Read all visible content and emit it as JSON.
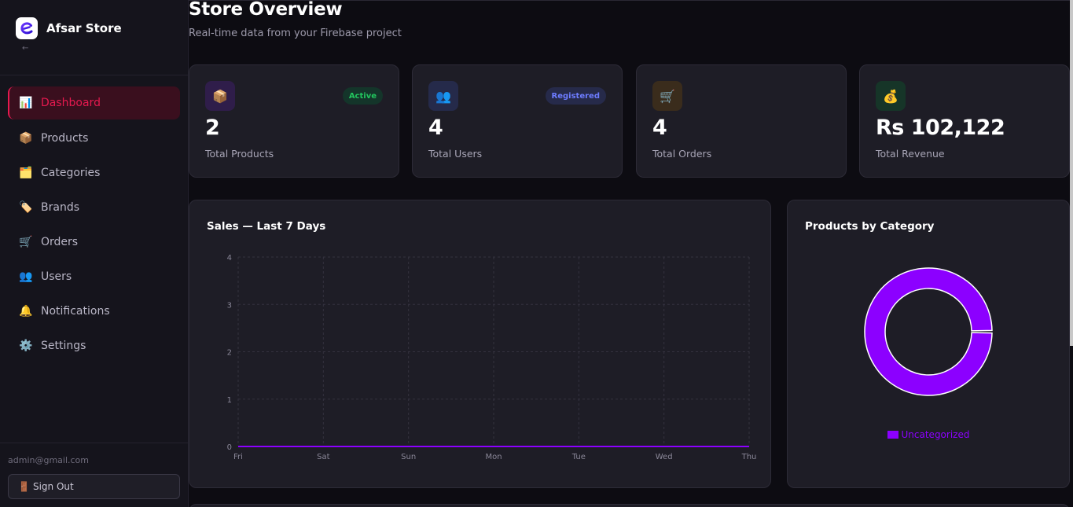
{
  "brand": {
    "name": "Afsar Store",
    "logo_letter": "e",
    "collapse_glyph": "←"
  },
  "sidebar": {
    "items": [
      {
        "label": "Dashboard",
        "icon": "📊",
        "icon_name": "chart-icon",
        "active": true
      },
      {
        "label": "Products",
        "icon": "📦",
        "icon_name": "package-icon",
        "active": false
      },
      {
        "label": "Categories",
        "icon": "🗂️",
        "icon_name": "folder-icon",
        "active": false
      },
      {
        "label": "Brands",
        "icon": "🏷️",
        "icon_name": "tag-icon",
        "active": false
      },
      {
        "label": "Orders",
        "icon": "🛒",
        "icon_name": "cart-icon",
        "active": false
      },
      {
        "label": "Users",
        "icon": "👥",
        "icon_name": "users-icon",
        "active": false
      },
      {
        "label": "Notifications",
        "icon": "🔔",
        "icon_name": "bell-icon",
        "active": false
      },
      {
        "label": "Settings",
        "icon": "⚙️",
        "icon_name": "gear-icon",
        "active": false
      }
    ],
    "admin_email": "admin@gmail.com",
    "signout_label": "Sign Out",
    "signout_icon": "🚪"
  },
  "header": {
    "title": "Store Overview",
    "subtitle": "Real-time data from your Firebase project"
  },
  "stats": [
    {
      "value": "2",
      "label": "Total Products",
      "icon": "📦",
      "icon_name": "package-icon",
      "badge": "Active",
      "badge_color": "#22c55e",
      "badge_bg": "#14352a",
      "icon_bg": "#2f1d4a"
    },
    {
      "value": "4",
      "label": "Total Users",
      "icon": "👥",
      "icon_name": "users-icon",
      "badge": "Registered",
      "badge_color": "#6d7cff",
      "badge_bg": "#262a4a",
      "icon_bg": "#252a4a"
    },
    {
      "value": "4",
      "label": "Total Orders",
      "icon": "🛒",
      "icon_name": "cart-icon",
      "badge": "",
      "icon_bg": "#3a2c1c"
    },
    {
      "value": "Rs 102,122",
      "label": "Total Revenue",
      "icon": "💰",
      "icon_name": "money-bag-icon",
      "badge": "",
      "icon_bg": "#163528"
    }
  ],
  "sales_panel": {
    "title": "Sales — Last 7 Days"
  },
  "category_panel": {
    "title": "Products by Category"
  },
  "colors": {
    "accent": "#e6194f",
    "series": "#8c00ff",
    "grid": "#34323f",
    "axis_text": "#8a8798"
  },
  "chart_data": [
    {
      "type": "line",
      "title": "Sales — Last 7 Days",
      "x": [
        "Fri",
        "Sat",
        "Sun",
        "Mon",
        "Tue",
        "Wed",
        "Thu"
      ],
      "series": [
        {
          "values": [
            0,
            0,
            0,
            0,
            0,
            0,
            0
          ]
        }
      ],
      "ylim": [
        0,
        4
      ],
      "yticks": [
        0,
        1,
        2,
        3,
        4
      ],
      "grid": true
    },
    {
      "type": "pie",
      "title": "Products by Category",
      "categories": [
        "Uncategorized"
      ],
      "values": [
        2
      ],
      "donut": true,
      "legend": "bottom"
    }
  ]
}
